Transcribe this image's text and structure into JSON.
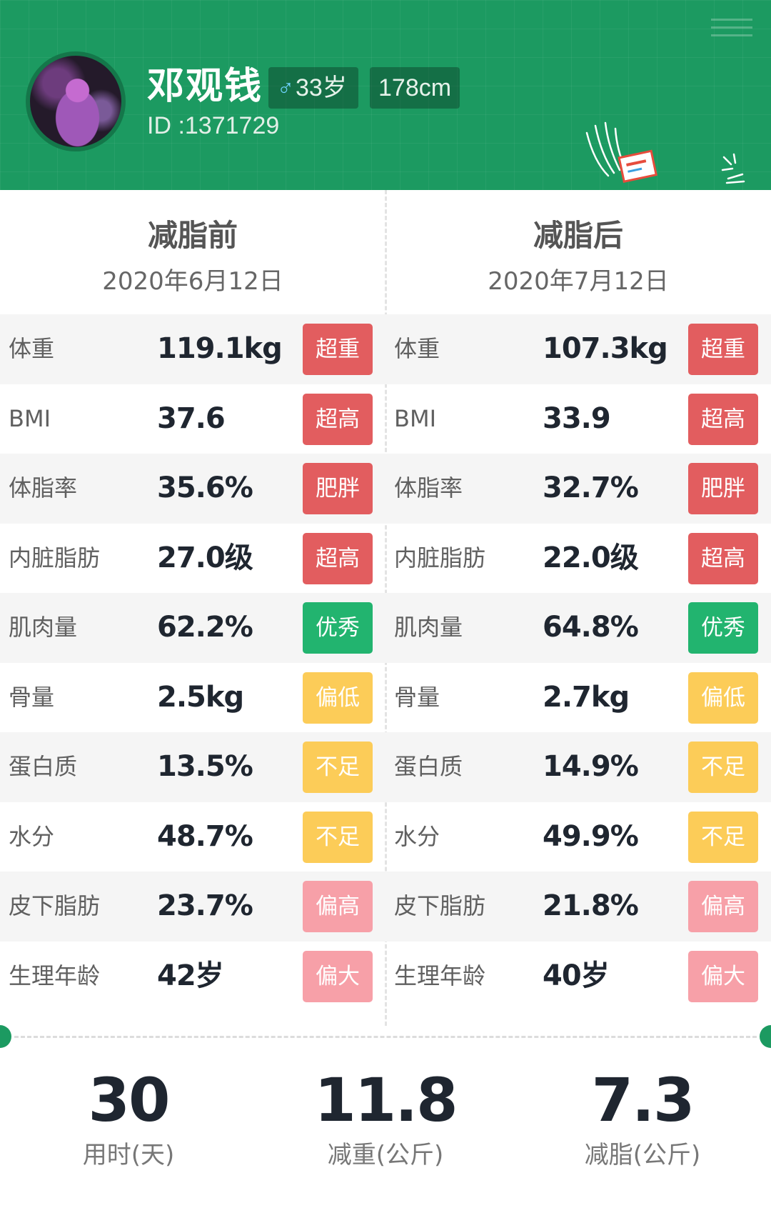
{
  "profile": {
    "name": "邓观钱",
    "age_badge": "♂33岁",
    "age_text": "33岁",
    "height_badge": "178cm",
    "id_label": "ID :1371729"
  },
  "colors": {
    "header_green": "#1c9a61",
    "status_red": "#e25d5f",
    "status_green": "#22b46f",
    "status_yellow": "#fccc58",
    "status_pink": "#f7a0a8"
  },
  "before": {
    "title": "减脂前",
    "date": "2020年6月12日",
    "rows": [
      {
        "label": "体重",
        "value": "119.1kg",
        "status": "超重",
        "color": "red"
      },
      {
        "label": "BMI",
        "value": "37.6",
        "status": "超高",
        "color": "red"
      },
      {
        "label": "体脂率",
        "value": "35.6%",
        "status": "肥胖",
        "color": "red"
      },
      {
        "label": "内脏脂肪",
        "value": "27.0级",
        "status": "超高",
        "color": "red"
      },
      {
        "label": "肌肉量",
        "value": "62.2%",
        "status": "优秀",
        "color": "green"
      },
      {
        "label": "骨量",
        "value": "2.5kg",
        "status": "偏低",
        "color": "yellow"
      },
      {
        "label": "蛋白质",
        "value": "13.5%",
        "status": "不足",
        "color": "yellow"
      },
      {
        "label": "水分",
        "value": "48.7%",
        "status": "不足",
        "color": "yellow"
      },
      {
        "label": "皮下脂肪",
        "value": "23.7%",
        "status": "偏高",
        "color": "pink"
      },
      {
        "label": "生理年龄",
        "value": "42岁",
        "status": "偏大",
        "color": "pink"
      }
    ]
  },
  "after": {
    "title": "减脂后",
    "date": "2020年7月12日",
    "rows": [
      {
        "label": "体重",
        "value": "107.3kg",
        "status": "超重",
        "color": "red"
      },
      {
        "label": "BMI",
        "value": "33.9",
        "status": "超高",
        "color": "red"
      },
      {
        "label": "体脂率",
        "value": "32.7%",
        "status": "肥胖",
        "color": "red"
      },
      {
        "label": "内脏脂肪",
        "value": "22.0级",
        "status": "超高",
        "color": "red"
      },
      {
        "label": "肌肉量",
        "value": "64.8%",
        "status": "优秀",
        "color": "green"
      },
      {
        "label": "骨量",
        "value": "2.7kg",
        "status": "偏低",
        "color": "yellow"
      },
      {
        "label": "蛋白质",
        "value": "14.9%",
        "status": "不足",
        "color": "yellow"
      },
      {
        "label": "水分",
        "value": "49.9%",
        "status": "不足",
        "color": "yellow"
      },
      {
        "label": "皮下脂肪",
        "value": "21.8%",
        "status": "偏高",
        "color": "pink"
      },
      {
        "label": "生理年龄",
        "value": "40岁",
        "status": "偏大",
        "color": "pink"
      }
    ]
  },
  "summary": [
    {
      "value": "30",
      "label": "用时(天)"
    },
    {
      "value": "11.8",
      "label": "减重(公斤)"
    },
    {
      "value": "7.3",
      "label": "减脂(公斤)"
    }
  ],
  "icons": {
    "male": "male-symbol-icon",
    "menu": "menu-lines-icon",
    "hand": "hand-holding-card-icon",
    "sparkle": "sparkle-icon"
  }
}
